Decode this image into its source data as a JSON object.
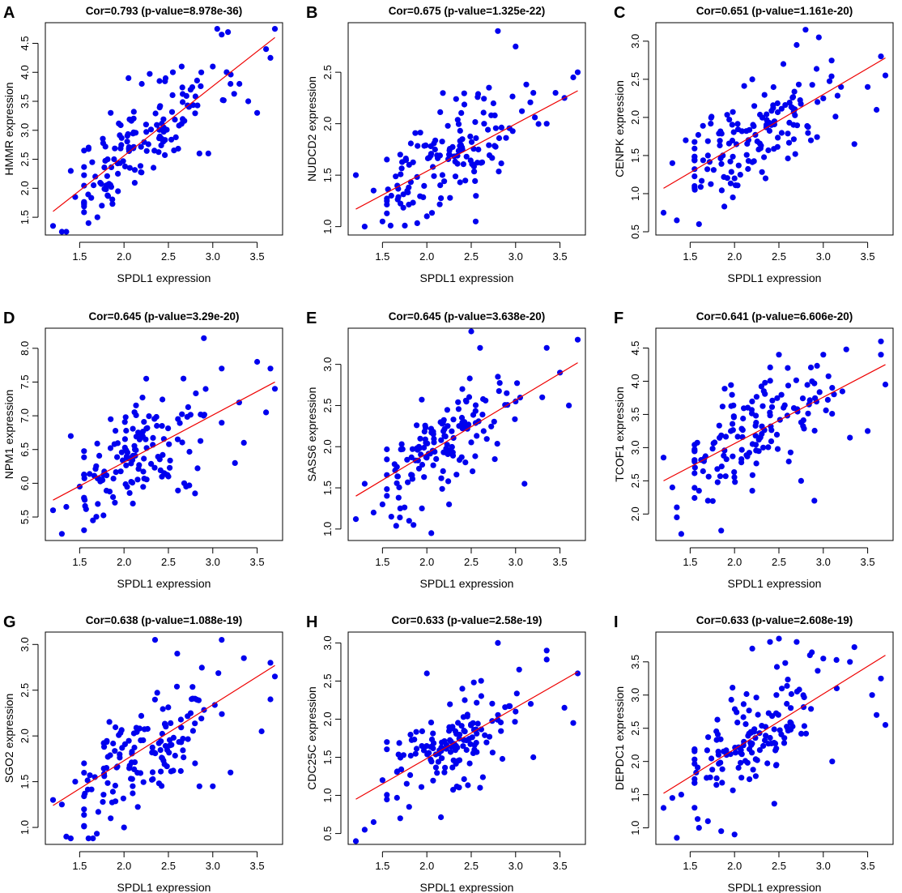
{
  "figure": {
    "colors": {
      "point": "#0000ee",
      "fit_line": "#ee0000",
      "axis": "#000000",
      "background": "#ffffff"
    }
  },
  "chart_data": [
    {
      "panel": "A",
      "type": "scatter",
      "title": "Cor=0.793 (p-value=8.978e-36)",
      "xlabel": "SPDL1 expression",
      "ylabel": "HMMR expression",
      "xlim": [
        1.15,
        3.75
      ],
      "ylim": [
        1.25,
        4.8
      ],
      "xticks": [
        1.5,
        2.0,
        2.5,
        3.0,
        3.5
      ],
      "yticks": [
        1.5,
        2.0,
        2.5,
        3.0,
        3.5,
        4.0,
        4.5
      ],
      "fit_line": [
        [
          1.2,
          1.6
        ],
        [
          3.7,
          4.6
        ]
      ],
      "seed": 11,
      "points": [
        [
          1.2,
          1.35
        ],
        [
          1.3,
          1.25
        ],
        [
          1.35,
          1.25
        ],
        [
          1.4,
          2.3
        ],
        [
          1.45,
          1.85
        ],
        [
          1.55,
          1.75
        ],
        [
          1.6,
          1.4
        ],
        [
          1.7,
          1.5
        ],
        [
          1.75,
          1.7
        ],
        [
          1.8,
          2.05
        ],
        [
          1.85,
          3.3
        ],
        [
          2.05,
          3.9
        ],
        [
          2.2,
          3.8
        ],
        [
          2.4,
          3.85
        ],
        [
          2.55,
          4.0
        ],
        [
          2.65,
          4.1
        ],
        [
          2.75,
          3.7
        ],
        [
          2.85,
          2.6
        ],
        [
          2.95,
          2.6
        ],
        [
          3.0,
          4.1
        ],
        [
          3.05,
          4.75
        ],
        [
          3.1,
          4.65
        ],
        [
          3.2,
          3.8
        ],
        [
          3.3,
          3.8
        ],
        [
          3.4,
          3.5
        ],
        [
          3.5,
          3.3
        ],
        [
          3.6,
          4.4
        ],
        [
          3.65,
          4.25
        ],
        [
          3.7,
          4.75
        ]
      ]
    },
    {
      "panel": "B",
      "type": "scatter",
      "title": "Cor=0.675 (p-value=1.325e-22)",
      "xlabel": "SPDL1 expression",
      "ylabel": "NUDCD2 expression",
      "xlim": [
        1.15,
        3.75
      ],
      "ylim": [
        0.95,
        2.95
      ],
      "xticks": [
        1.5,
        2.0,
        2.5,
        3.0,
        3.5
      ],
      "yticks": [
        1.0,
        1.5,
        2.0,
        2.5
      ],
      "fit_line": [
        [
          1.2,
          1.17
        ],
        [
          3.7,
          2.32
        ]
      ],
      "seed": 23,
      "points": [
        [
          1.2,
          1.5
        ],
        [
          1.3,
          1.0
        ],
        [
          1.4,
          1.35
        ],
        [
          1.5,
          1.05
        ],
        [
          1.6,
          1.3
        ],
        [
          1.7,
          1.7
        ],
        [
          1.8,
          1.6
        ],
        [
          2.0,
          1.1
        ],
        [
          2.25,
          1.7
        ],
        [
          2.4,
          1.85
        ],
        [
          2.55,
          1.05
        ],
        [
          2.7,
          2.35
        ],
        [
          2.8,
          2.9
        ],
        [
          3.0,
          2.75
        ],
        [
          3.2,
          2.3
        ],
        [
          3.35,
          2.0
        ],
        [
          3.45,
          2.3
        ],
        [
          3.55,
          2.25
        ],
        [
          3.65,
          2.45
        ],
        [
          3.7,
          2.5
        ]
      ]
    },
    {
      "panel": "C",
      "type": "scatter",
      "title": "Cor=0.651 (p-value=1.161e-20)",
      "xlabel": "SPDL1 expression",
      "ylabel": "CENPK expression",
      "xlim": [
        1.15,
        3.75
      ],
      "ylim": [
        0.5,
        3.2
      ],
      "xticks": [
        1.5,
        2.0,
        2.5,
        3.0,
        3.5
      ],
      "yticks": [
        0.5,
        1.0,
        1.5,
        2.0,
        2.5,
        3.0
      ],
      "fit_line": [
        [
          1.2,
          1.07
        ],
        [
          3.7,
          2.78
        ]
      ],
      "seed": 37,
      "points": [
        [
          1.2,
          0.75
        ],
        [
          1.3,
          1.4
        ],
        [
          1.35,
          0.65
        ],
        [
          1.45,
          1.7
        ],
        [
          1.55,
          1.1
        ],
        [
          1.6,
          0.6
        ],
        [
          1.7,
          1.5
        ],
        [
          2.0,
          1.2
        ],
        [
          2.2,
          2.5
        ],
        [
          2.35,
          1.2
        ],
        [
          2.55,
          2.7
        ],
        [
          2.7,
          2.95
        ],
        [
          2.8,
          3.15
        ],
        [
          2.95,
          3.05
        ],
        [
          3.0,
          2.25
        ],
        [
          3.2,
          2.4
        ],
        [
          3.35,
          1.65
        ],
        [
          3.5,
          2.4
        ],
        [
          3.6,
          2.1
        ],
        [
          3.65,
          2.8
        ],
        [
          3.7,
          2.55
        ]
      ]
    },
    {
      "panel": "D",
      "type": "scatter",
      "title": "Cor=0.645 (p-value=3.29e-20)",
      "xlabel": "SPDL1 expression",
      "ylabel": "NPM1 expression",
      "xlim": [
        1.15,
        3.75
      ],
      "ylim": [
        5.2,
        8.25
      ],
      "xticks": [
        1.5,
        2.0,
        2.5,
        3.0,
        3.5
      ],
      "yticks": [
        5.5,
        6.0,
        6.5,
        7.0,
        7.5,
        8.0
      ],
      "fit_line": [
        [
          1.2,
          5.75
        ],
        [
          3.7,
          7.5
        ]
      ],
      "seed": 41,
      "points": [
        [
          1.2,
          5.6
        ],
        [
          1.3,
          5.25
        ],
        [
          1.35,
          5.65
        ],
        [
          1.4,
          6.7
        ],
        [
          1.5,
          5.95
        ],
        [
          1.65,
          5.45
        ],
        [
          1.85,
          6.95
        ],
        [
          2.1,
          5.7
        ],
        [
          2.25,
          7.55
        ],
        [
          2.5,
          6.1
        ],
        [
          2.7,
          5.95
        ],
        [
          2.8,
          5.85
        ],
        [
          2.9,
          8.15
        ],
        [
          3.1,
          7.7
        ],
        [
          3.25,
          6.3
        ],
        [
          3.35,
          6.6
        ],
        [
          3.5,
          7.8
        ],
        [
          3.6,
          7.05
        ],
        [
          3.65,
          7.7
        ],
        [
          3.7,
          7.4
        ]
      ]
    },
    {
      "panel": "E",
      "type": "scatter",
      "title": "Cor=0.645 (p-value=3.638e-20)",
      "xlabel": "SPDL1 expression",
      "ylabel": "SASS6 expression",
      "xlim": [
        1.15,
        3.75
      ],
      "ylim": [
        0.9,
        3.4
      ],
      "xticks": [
        1.5,
        2.0,
        2.5,
        3.0,
        3.5
      ],
      "yticks": [
        1.0,
        1.5,
        2.0,
        2.5,
        3.0
      ],
      "fit_line": [
        [
          1.2,
          1.4
        ],
        [
          3.7,
          3.02
        ]
      ],
      "seed": 53,
      "points": [
        [
          1.2,
          1.12
        ],
        [
          1.3,
          1.55
        ],
        [
          1.4,
          1.2
        ],
        [
          1.5,
          1.3
        ],
        [
          1.6,
          1.15
        ],
        [
          1.7,
          1.25
        ],
        [
          1.8,
          1.1
        ],
        [
          1.85,
          1.05
        ],
        [
          2.05,
          0.95
        ],
        [
          2.4,
          2.7
        ],
        [
          2.5,
          3.4
        ],
        [
          2.6,
          3.2
        ],
        [
          2.8,
          2.85
        ],
        [
          2.9,
          2.65
        ],
        [
          3.0,
          2.55
        ],
        [
          3.1,
          1.55
        ],
        [
          3.3,
          2.6
        ],
        [
          3.35,
          3.2
        ],
        [
          3.5,
          2.9
        ],
        [
          3.6,
          2.5
        ],
        [
          3.7,
          3.3
        ]
      ]
    },
    {
      "panel": "F",
      "type": "scatter",
      "title": "Cor=0.641 (p-value=6.606e-20)",
      "xlabel": "SPDL1 expression",
      "ylabel": "TCOF1 expression",
      "xlim": [
        1.15,
        3.75
      ],
      "ylim": [
        1.65,
        4.75
      ],
      "xticks": [
        1.5,
        2.0,
        2.5,
        3.0,
        3.5
      ],
      "yticks": [
        2.0,
        2.5,
        3.0,
        3.5,
        4.0,
        4.5
      ],
      "fit_line": [
        [
          1.2,
          2.5
        ],
        [
          3.7,
          4.25
        ]
      ],
      "seed": 67,
      "points": [
        [
          1.2,
          2.85
        ],
        [
          1.3,
          2.4
        ],
        [
          1.35,
          2.1
        ],
        [
          1.35,
          1.95
        ],
        [
          1.4,
          1.7
        ],
        [
          1.6,
          2.35
        ],
        [
          1.7,
          2.2
        ],
        [
          1.85,
          1.75
        ],
        [
          2.2,
          2.35
        ],
        [
          2.5,
          4.4
        ],
        [
          2.6,
          4.2
        ],
        [
          2.75,
          2.5
        ],
        [
          2.9,
          2.2
        ],
        [
          3.0,
          4.4
        ],
        [
          3.1,
          3.9
        ],
        [
          3.3,
          3.15
        ],
        [
          3.5,
          3.25
        ],
        [
          3.65,
          4.6
        ],
        [
          3.65,
          4.4
        ],
        [
          3.7,
          3.95
        ]
      ]
    },
    {
      "panel": "G",
      "type": "scatter",
      "title": "Cor=0.638 (p-value=1.088e-19)",
      "xlabel": "SPDL1 expression",
      "ylabel": "SGO2 expression",
      "xlim": [
        1.15,
        3.75
      ],
      "ylim": [
        0.85,
        3.1
      ],
      "xticks": [
        1.5,
        2.0,
        2.5,
        3.0,
        3.5
      ],
      "yticks": [
        1.0,
        1.5,
        2.0,
        2.5,
        3.0
      ],
      "fit_line": [
        [
          1.2,
          1.24
        ],
        [
          3.7,
          2.77
        ]
      ],
      "seed": 79,
      "points": [
        [
          1.2,
          1.3
        ],
        [
          1.3,
          1.25
        ],
        [
          1.35,
          0.9
        ],
        [
          1.4,
          0.88
        ],
        [
          1.45,
          1.5
        ],
        [
          1.6,
          0.88
        ],
        [
          1.65,
          0.88
        ],
        [
          1.85,
          1.1
        ],
        [
          2.0,
          1.0
        ],
        [
          2.35,
          3.05
        ],
        [
          2.6,
          2.9
        ],
        [
          2.8,
          1.7
        ],
        [
          2.85,
          1.45
        ],
        [
          3.0,
          1.45
        ],
        [
          3.1,
          3.05
        ],
        [
          3.2,
          1.6
        ],
        [
          3.35,
          2.85
        ],
        [
          3.55,
          2.05
        ],
        [
          3.65,
          2.8
        ],
        [
          3.65,
          2.4
        ],
        [
          3.7,
          2.65
        ]
      ]
    },
    {
      "panel": "H",
      "type": "scatter",
      "title": "Cor=0.633 (p-value=2.58e-19)",
      "xlabel": "SPDL1 expression",
      "ylabel": "CDC25C expression",
      "xlim": [
        1.15,
        3.75
      ],
      "ylim": [
        0.4,
        3.1
      ],
      "xticks": [
        1.5,
        2.0,
        2.5,
        3.0,
        3.5
      ],
      "yticks": [
        0.5,
        1.0,
        1.5,
        2.0,
        2.5,
        3.0
      ],
      "fit_line": [
        [
          1.2,
          0.95
        ],
        [
          3.7,
          2.62
        ]
      ],
      "seed": 97,
      "points": [
        [
          1.2,
          0.4
        ],
        [
          1.3,
          0.55
        ],
        [
          1.4,
          0.65
        ],
        [
          1.5,
          1.2
        ],
        [
          1.55,
          1.7
        ],
        [
          1.7,
          0.7
        ],
        [
          1.8,
          0.85
        ],
        [
          2.0,
          2.6
        ],
        [
          2.4,
          2.4
        ],
        [
          2.6,
          1.1
        ],
        [
          2.8,
          3.0
        ],
        [
          3.0,
          2.1
        ],
        [
          3.2,
          1.5
        ],
        [
          3.35,
          2.9
        ],
        [
          3.55,
          2.15
        ],
        [
          3.65,
          1.95
        ],
        [
          3.7,
          2.6
        ]
      ]
    },
    {
      "panel": "I",
      "type": "scatter",
      "title": "Cor=0.633 (p-value=2.608e-19)",
      "xlabel": "SPDL1 expression",
      "ylabel": "DEPDC1 expression",
      "xlim": [
        1.15,
        3.75
      ],
      "ylim": [
        0.8,
        3.9
      ],
      "xticks": [
        1.5,
        2.0,
        2.5,
        3.0,
        3.5
      ],
      "yticks": [
        1.0,
        1.5,
        2.0,
        2.5,
        3.0,
        3.5
      ],
      "fit_line": [
        [
          1.2,
          1.52
        ],
        [
          3.7,
          3.6
        ]
      ],
      "seed": 113,
      "points": [
        [
          1.2,
          1.3
        ],
        [
          1.3,
          1.45
        ],
        [
          1.35,
          0.85
        ],
        [
          1.4,
          1.5
        ],
        [
          1.6,
          1.0
        ],
        [
          1.7,
          1.1
        ],
        [
          1.85,
          0.95
        ],
        [
          2.0,
          0.9
        ],
        [
          2.2,
          3.7
        ],
        [
          2.4,
          3.8
        ],
        [
          2.5,
          3.85
        ],
        [
          2.7,
          3.8
        ],
        [
          2.85,
          3.6
        ],
        [
          3.0,
          3.55
        ],
        [
          3.1,
          2.0
        ],
        [
          3.3,
          3.5
        ],
        [
          3.55,
          3.0
        ],
        [
          3.65,
          3.25
        ],
        [
          3.7,
          2.55
        ],
        [
          3.6,
          2.7
        ]
      ]
    }
  ]
}
